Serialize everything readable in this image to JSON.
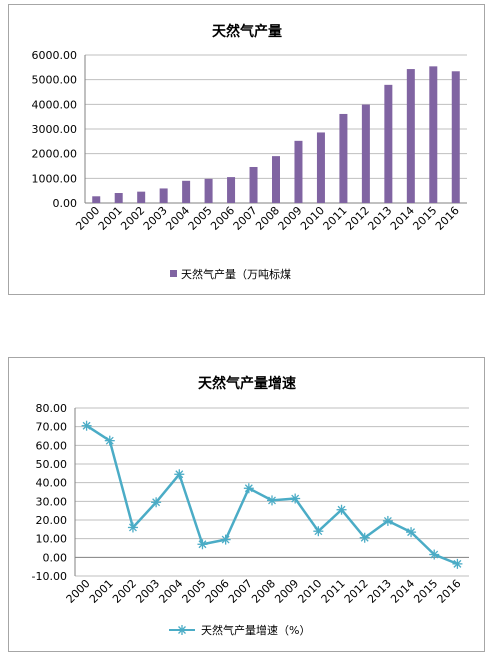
{
  "colors": {
    "bar": "#8064a2",
    "line": "#4bacc6",
    "grid": "#bfbfbf"
  },
  "chart_data": [
    {
      "type": "bar",
      "title": "天然气产量",
      "categories": [
        "2000",
        "2001",
        "2002",
        "2003",
        "2004",
        "2005",
        "2006",
        "2007",
        "2008",
        "2009",
        "2010",
        "2011",
        "2012",
        "2013",
        "2014",
        "2015",
        "2016"
      ],
      "series": [
        {
          "name": "天然气产量（万吨标煤",
          "values": [
            272,
            405,
            460,
            590,
            900,
            980,
            1050,
            1460,
            1900,
            2520,
            2860,
            3610,
            3990,
            4790,
            5430,
            5540,
            5340
          ]
        }
      ],
      "yticks": [
        "0.00",
        "1000.00",
        "2000.00",
        "3000.00",
        "4000.00",
        "5000.00",
        "6000.00"
      ],
      "ylim": [
        0,
        6000
      ],
      "grid": true,
      "legend": "bottom"
    },
    {
      "type": "line",
      "title": "天然气产量增速",
      "categories": [
        "2000",
        "2001",
        "2002",
        "2003",
        "2004",
        "2005",
        "2006",
        "2007",
        "2008",
        "2009",
        "2010",
        "2011",
        "2012",
        "2013",
        "2014",
        "2015",
        "2016"
      ],
      "series": [
        {
          "name": "天然气产量增速（%）",
          "values": [
            70.5,
            62.5,
            16.0,
            29.5,
            44.5,
            7.0,
            9.5,
            37.0,
            30.5,
            31.5,
            14.0,
            25.5,
            10.5,
            19.5,
            13.5,
            1.5,
            -3.5
          ]
        }
      ],
      "yticks": [
        "-10.00",
        "0.00",
        "10.00",
        "20.00",
        "30.00",
        "40.00",
        "50.00",
        "60.00",
        "70.00",
        "80.00"
      ],
      "ylim": [
        -10,
        80
      ],
      "grid": true,
      "legend": "bottom"
    }
  ]
}
